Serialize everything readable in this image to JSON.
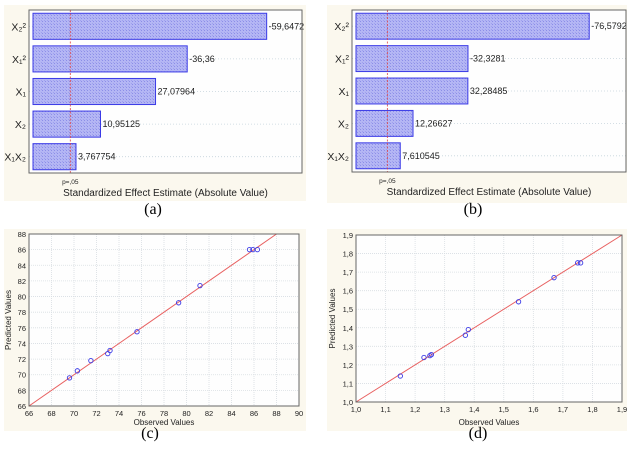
{
  "chart_data": [
    {
      "type": "bar",
      "orientation": "horizontal",
      "panel": "(a)",
      "categories": [
        "X₂²",
        "X₁²",
        "X₁",
        "X₂",
        "X₁X₂"
      ],
      "values": [
        59.6472,
        36.36,
        27.07964,
        10.95125,
        3.767754
      ],
      "data_labels": [
        "-59,6472",
        "-36,36",
        "27,07964",
        "10,95125",
        "3,767754"
      ],
      "xlabel": "Standardized Effect Estimate (Absolute Value)",
      "reference_line": {
        "label": "p=,05",
        "value": 2.1
      },
      "xlim": [
        -10,
        70
      ],
      "grid": true,
      "colors": {
        "bar_fill": "#aeb0f2",
        "bar_edge": "#3a3ae6",
        "ref_line": "#e04040"
      }
    },
    {
      "type": "bar",
      "orientation": "horizontal",
      "panel": "(b)",
      "categories": [
        "X₂²",
        "X₁²",
        "X₁",
        "X₂",
        "X₁X₂"
      ],
      "values": [
        76.5792,
        32.3281,
        32.28485,
        12.26627,
        7.610545
      ],
      "data_labels": [
        "-76,5792",
        "-32,3281",
        "32,28485",
        "12,26627",
        "7,610545"
      ],
      "xlabel": "Standardized Effect Estimate (Absolute Value)",
      "reference_line": {
        "label": "p=,05",
        "value": 2.9
      },
      "xlim": [
        -10,
        90
      ],
      "grid": true,
      "colors": {
        "bar_fill": "#aeb0f2",
        "bar_edge": "#3a3ae6",
        "ref_line": "#e04040"
      }
    },
    {
      "type": "scatter",
      "panel": "(c)",
      "xlabel": "Observed Values",
      "ylabel": "Predicted Values",
      "xlim": [
        66,
        90
      ],
      "ylim": [
        66,
        88
      ],
      "xticks": [
        66,
        68,
        70,
        72,
        74,
        76,
        78,
        80,
        82,
        84,
        86,
        88,
        90
      ],
      "yticks": [
        66,
        68,
        70,
        72,
        74,
        76,
        78,
        80,
        82,
        84,
        86,
        88
      ],
      "tick_labels_x": [
        "66",
        "68",
        "70",
        "72",
        "74",
        "76",
        "78",
        "80",
        "82",
        "84",
        "86",
        "88",
        "90"
      ],
      "tick_labels_y": [
        "66",
        "68",
        "70",
        "72",
        "74",
        "76",
        "78",
        "80",
        "82",
        "84",
        "86",
        "88"
      ],
      "points": [
        [
          69.6,
          69.6
        ],
        [
          70.3,
          70.5
        ],
        [
          71.5,
          71.8
        ],
        [
          73.0,
          72.7
        ],
        [
          73.2,
          73.1
        ],
        [
          75.6,
          75.5
        ],
        [
          79.3,
          79.2
        ],
        [
          81.2,
          81.4
        ],
        [
          85.6,
          86.0
        ],
        [
          85.9,
          86.0
        ],
        [
          86.3,
          86.0
        ]
      ],
      "fit_line": [
        [
          66,
          66
        ],
        [
          88,
          88
        ]
      ],
      "grid": true,
      "colors": {
        "point": "#3a3ae6",
        "line": "#e86060"
      }
    },
    {
      "type": "scatter",
      "panel": "(d)",
      "xlabel": "Observed Values",
      "ylabel": "Predicted Values",
      "xlim": [
        1.0,
        1.9
      ],
      "ylim": [
        1.0,
        1.9
      ],
      "xticks": [
        1.0,
        1.1,
        1.2,
        1.3,
        1.4,
        1.5,
        1.6,
        1.7,
        1.8,
        1.9
      ],
      "yticks": [
        1.0,
        1.1,
        1.2,
        1.3,
        1.4,
        1.5,
        1.6,
        1.7,
        1.8,
        1.9
      ],
      "tick_labels_x": [
        "1,0",
        "1,1",
        "1,2",
        "1,3",
        "1,4",
        "1,5",
        "1,6",
        "1,7",
        "1,8",
        "1,9"
      ],
      "tick_labels_y": [
        "1,0",
        "1,1",
        "1,2",
        "1,3",
        "1,4",
        "1,5",
        "1,6",
        "1,7",
        "1,8",
        "1,9"
      ],
      "points": [
        [
          1.15,
          1.14
        ],
        [
          1.23,
          1.24
        ],
        [
          1.25,
          1.25
        ],
        [
          1.255,
          1.255
        ],
        [
          1.37,
          1.36
        ],
        [
          1.38,
          1.39
        ],
        [
          1.55,
          1.54
        ],
        [
          1.67,
          1.67
        ],
        [
          1.75,
          1.75
        ],
        [
          1.76,
          1.75
        ]
      ],
      "fit_line": [
        [
          1.0,
          1.0
        ],
        [
          1.9,
          1.9
        ]
      ],
      "grid": true,
      "colors": {
        "point": "#3a3ae6",
        "line": "#e86060"
      }
    }
  ]
}
